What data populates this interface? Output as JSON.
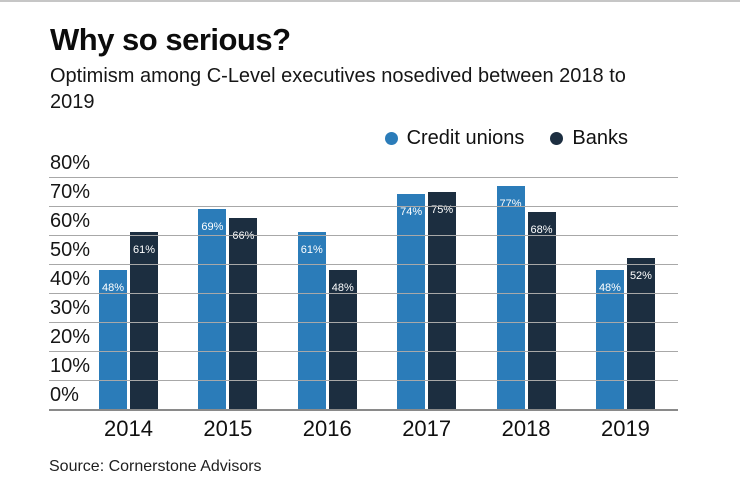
{
  "header": {
    "title": "Why so serious?",
    "subtitle": "Optimism among C-Level executives nosedived between 2018 to 2019"
  },
  "source_line": "Source: Cornerstone Advisors",
  "chart_data": {
    "type": "bar",
    "title": "Why so serious?",
    "subtitle": "Optimism among C-Level executives nosedived between 2018 to 2019",
    "categories": [
      "2014",
      "2015",
      "2016",
      "2017",
      "2018",
      "2019"
    ],
    "series": [
      {
        "name": "Credit unions",
        "color": "#2b7cb9",
        "values": [
          48,
          69,
          61,
          74,
          77,
          48
        ]
      },
      {
        "name": "Banks",
        "color": "#1c2e40",
        "values": [
          61,
          66,
          48,
          75,
          68,
          52
        ]
      }
    ],
    "value_label_suffix": "%",
    "xlabel": "",
    "ylabel": "",
    "ylim": [
      0,
      80
    ],
    "yticks": [
      "80%",
      "70%",
      "60%",
      "50%",
      "40%",
      "30%",
      "20%",
      "10%",
      "0%"
    ],
    "grid": true,
    "legend_position": "top-right",
    "gridline_color": "#a8a8a8",
    "axis_color": "#8a8a8a",
    "label_text_color": "#ffffff"
  }
}
